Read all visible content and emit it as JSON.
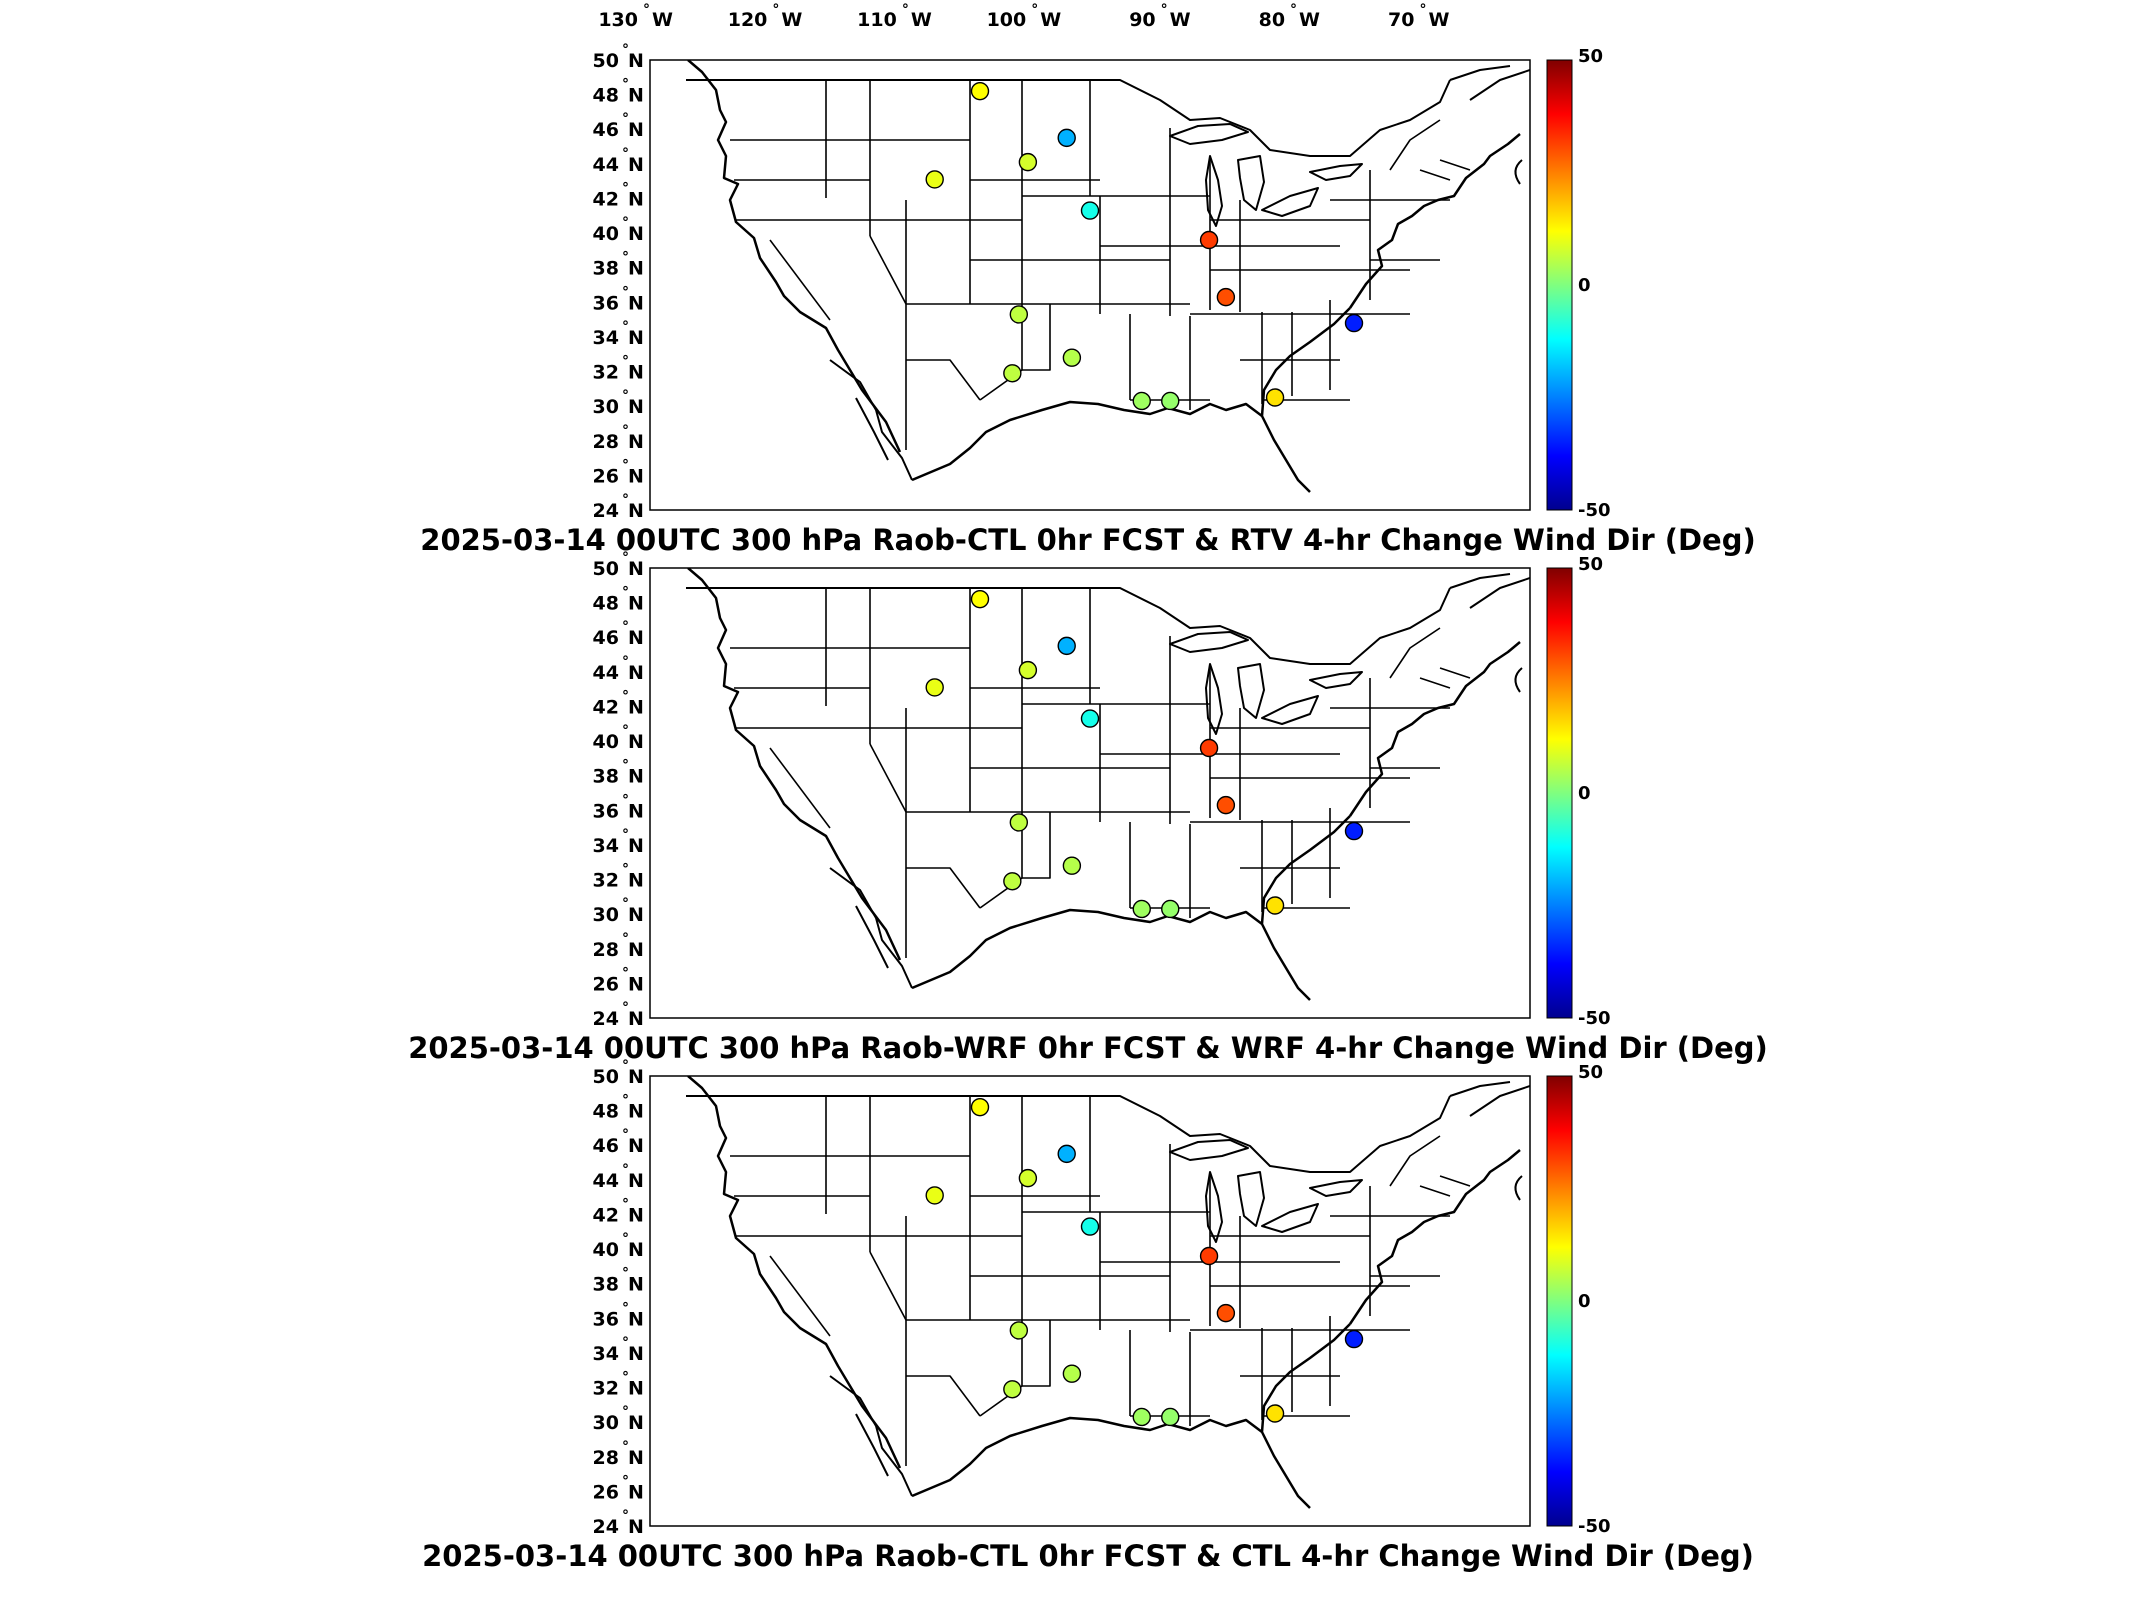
{
  "top_axis": {
    "lon_labels": [
      "130",
      "120",
      "110",
      "100",
      "90",
      "80",
      "70"
    ],
    "hemisphere": "W",
    "degree_symbol": "°"
  },
  "lat_axis": {
    "lat_labels": [
      "50",
      "48",
      "46",
      "44",
      "42",
      "40",
      "38",
      "36",
      "34",
      "32",
      "30",
      "28",
      "26",
      "24"
    ],
    "hemisphere": "N"
  },
  "colorbar": {
    "max_label": "50",
    "mid_label": "0",
    "min_label": "-50",
    "stops": [
      "#00008f",
      "#0000ff",
      "#00ffff",
      "#ffff00",
      "#ff0000",
      "#800000"
    ]
  },
  "panels": [
    {
      "title": "2025-03-14 00UTC 300 hPa Raob-CTL 0hr FCST & RTV 4-hr Change Wind Dir (Deg)"
    },
    {
      "title": "2025-03-14 00UTC 300 hPa Raob-WRF 0hr FCST & WRF 4-hr Change Wind Dir (Deg)"
    },
    {
      "title": "2025-03-14 00UTC 300 hPa Raob-CTL 0hr FCST & CTL 4-hr Change Wind Dir (Deg)"
    }
  ],
  "raob_sites": [
    {
      "lon": -104.5,
      "lat": 48.2,
      "value": 12
    },
    {
      "lon": -97.8,
      "lat": 45.5,
      "value": -20
    },
    {
      "lon": -100.8,
      "lat": 44.1,
      "value": 8
    },
    {
      "lon": -108.0,
      "lat": 43.1,
      "value": 10
    },
    {
      "lon": -96.0,
      "lat": 41.3,
      "value": -10
    },
    {
      "lon": -86.8,
      "lat": 39.6,
      "value": 32
    },
    {
      "lon": -85.5,
      "lat": 36.3,
      "value": 30
    },
    {
      "lon": -101.5,
      "lat": 35.3,
      "value": 6
    },
    {
      "lon": -97.4,
      "lat": 32.8,
      "value": 5
    },
    {
      "lon": -102.0,
      "lat": 31.9,
      "value": 6
    },
    {
      "lon": -92.0,
      "lat": 30.3,
      "value": 3
    },
    {
      "lon": -89.8,
      "lat": 30.3,
      "value": 2
    },
    {
      "lon": -81.7,
      "lat": 30.5,
      "value": 15
    },
    {
      "lon": -75.6,
      "lat": 34.8,
      "value": -35
    }
  ]
}
